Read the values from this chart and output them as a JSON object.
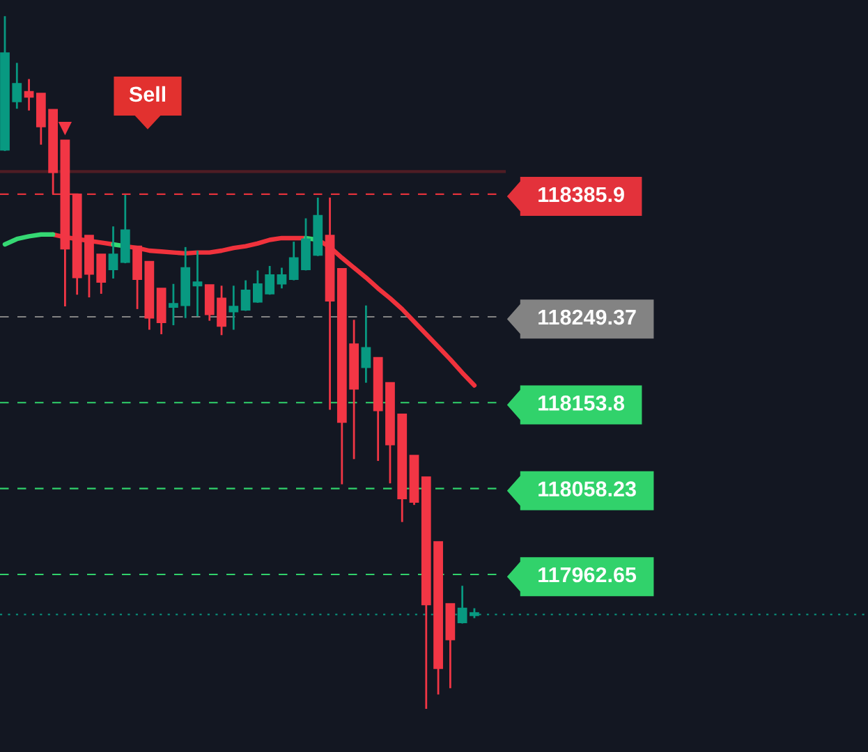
{
  "chart_data": {
    "type": "candlestick",
    "categories": [
      null,
      null,
      null,
      null,
      null,
      null,
      null,
      null,
      null,
      null,
      null,
      null,
      null,
      null,
      null,
      null,
      null,
      null,
      null,
      null,
      null,
      null,
      null,
      null,
      null,
      null,
      null,
      null,
      null,
      null,
      null,
      null,
      null,
      null,
      null,
      null,
      null,
      null,
      null,
      null
    ],
    "ohlc": [
      [
        118435,
        118584,
        118434,
        118543
      ],
      [
        118489,
        118532,
        118481,
        118509
      ],
      [
        118500,
        118514,
        118479,
        118494
      ],
      [
        118498,
        118498,
        118441,
        118461
      ],
      [
        118480,
        118480,
        118386,
        118410
      ],
      [
        118446,
        118446,
        118261,
        118325
      ],
      [
        118386,
        118386,
        118274,
        118293
      ],
      [
        118340,
        118340,
        118271,
        118297
      ],
      [
        118319,
        118319,
        118275,
        118288
      ],
      [
        118302,
        118350,
        118292,
        118319
      ],
      [
        118310,
        118385,
        118309,
        118346
      ],
      [
        118328,
        118328,
        118258,
        118291
      ],
      [
        118311,
        118311,
        118235,
        118248
      ],
      [
        118281,
        118281,
        118230,
        118243
      ],
      [
        118260,
        118286,
        118240,
        118264
      ],
      [
        118262,
        118327,
        118248,
        118304
      ],
      [
        118284,
        118323,
        118250,
        118288
      ],
      [
        118285,
        118285,
        118245,
        118252
      ],
      [
        118270,
        118284,
        118229,
        118239
      ],
      [
        118255,
        118284,
        118235,
        118261
      ],
      [
        118257,
        118290,
        118256,
        118279
      ],
      [
        118266,
        118301,
        118265,
        118286
      ],
      [
        118275,
        118306,
        118274,
        118296
      ],
      [
        118286,
        118304,
        118281,
        118296
      ],
      [
        118291,
        118333,
        118290,
        118315
      ],
      [
        118302,
        118359,
        118301,
        118336
      ],
      [
        118318,
        118382,
        118317,
        118362
      ],
      [
        118340,
        118382,
        118146,
        118267
      ],
      [
        118303,
        118303,
        118063,
        118132
      ],
      [
        118219,
        118246,
        118091,
        118169
      ],
      [
        118193,
        118262,
        118176,
        118215
      ],
      [
        118204,
        118204,
        118089,
        118145
      ],
      [
        118176,
        118176,
        118064,
        118107
      ],
      [
        118141,
        118141,
        118021,
        118047
      ],
      [
        118095,
        118095,
        118040,
        118043
      ],
      [
        118071,
        118071,
        117813,
        117929
      ],
      [
        117999,
        117999,
        117829,
        117858
      ],
      [
        117930,
        117930,
        117836,
        117890
      ],
      [
        117909,
        117950,
        117908,
        117925
      ],
      [
        117917,
        117925,
        117914,
        117920
      ]
    ],
    "colors": [
      "#089981",
      "#089981",
      "#f23645",
      "#f23645",
      "#f23645",
      "#f23645",
      "#f23645",
      "#f23645",
      "#f23645",
      "#089981",
      "#089981",
      "#f23645",
      "#f23645",
      "#f23645",
      "#089981",
      "#089981",
      "#089981",
      "#f23645",
      "#f23645",
      "#089981",
      "#089981",
      "#089981",
      "#089981",
      "#089981",
      "#089981",
      "#089981",
      "#089981",
      "#f23645",
      "#f23645",
      "#f23645",
      "#089981",
      "#f23645",
      "#f23645",
      "#f23645",
      "#f23645",
      "#f23645",
      "#f23645",
      "#f23645",
      "#089981",
      "#089981"
    ],
    "series": [
      {
        "type": "line",
        "color": "#f0323c",
        "line_style": "solid",
        "values": [
          null,
          null,
          null,
          null,
          118341,
          118338,
          118336,
          118334,
          118332,
          118330,
          null,
          null,
          null,
          null,
          null,
          null,
          null,
          null,
          null,
          null,
          null,
          null,
          null,
          null,
          null,
          null,
          118335,
          118327,
          118315,
          118304,
          118293,
          118281,
          118270,
          118258,
          118244,
          118230,
          118216,
          118202,
          118187,
          118173
        ]
      },
      {
        "type": "line",
        "color": "#f0323c",
        "line_style": "solid",
        "values": [
          null,
          null,
          null,
          null,
          null,
          null,
          null,
          null,
          null,
          null,
          118328,
          118326,
          118323,
          118322,
          118321,
          118320,
          118321,
          118321,
          118323,
          118326,
          118328,
          118331,
          118335,
          118337,
          118337,
          118337,
          null,
          null,
          null,
          null,
          null,
          null,
          null,
          null,
          null,
          null,
          null,
          null,
          null,
          null
        ]
      },
      {
        "type": "line",
        "color": "#35d873",
        "line_style": "solid",
        "values": [
          118330,
          118336,
          118339,
          118341,
          118341,
          null,
          null,
          null,
          null,
          118330,
          118328,
          null,
          null,
          null,
          null,
          null,
          null,
          null,
          null,
          null,
          null,
          null,
          null,
          null,
          null,
          118337,
          118335,
          null,
          null,
          null,
          null,
          null,
          null,
          null,
          null,
          null,
          null,
          null,
          null,
          null
        ]
      },
      {
        "type": "scatter",
        "color": "#f23645",
        "marker": "triangle",
        "values": [
          null,
          null,
          null,
          null,
          null,
          118459,
          null,
          null,
          null,
          null,
          null,
          null,
          null,
          null,
          null,
          null,
          null,
          null,
          null,
          null,
          null,
          null,
          null,
          null,
          null,
          null,
          null,
          null,
          null,
          null,
          null,
          null,
          null,
          null,
          null,
          null,
          null,
          null,
          null,
          null
        ]
      }
    ],
    "ylim": [
      117765,
      118602
    ],
    "yticks": [
      118385.9,
      118249.37,
      118153.8,
      118058.23,
      117962.65
    ],
    "tick_labels": "y",
    "ref_lines": [
      {
        "axis": "y",
        "value": 118385.9,
        "color": "#e3323b",
        "line_style": "dashed"
      },
      {
        "axis": "y",
        "value": 118249.37,
        "color": "#838383",
        "line_style": "dashed"
      },
      {
        "axis": "y",
        "value": 118153.8,
        "color": "#31d26b",
        "line_style": "dashed"
      },
      {
        "axis": "y",
        "value": 118058.23,
        "color": "#31d26b",
        "line_style": "dashed"
      },
      {
        "axis": "y",
        "value": 117962.65,
        "color": "#31d26b",
        "line_style": "dashed"
      },
      {
        "axis": "y",
        "value": 118411,
        "color": "#4f1d24",
        "line_style": "solid"
      },
      {
        "axis": "y",
        "value": 117918,
        "color": "#089981",
        "line_style": "dotted"
      }
    ],
    "annotations": [
      "Sell"
    ]
  }
}
